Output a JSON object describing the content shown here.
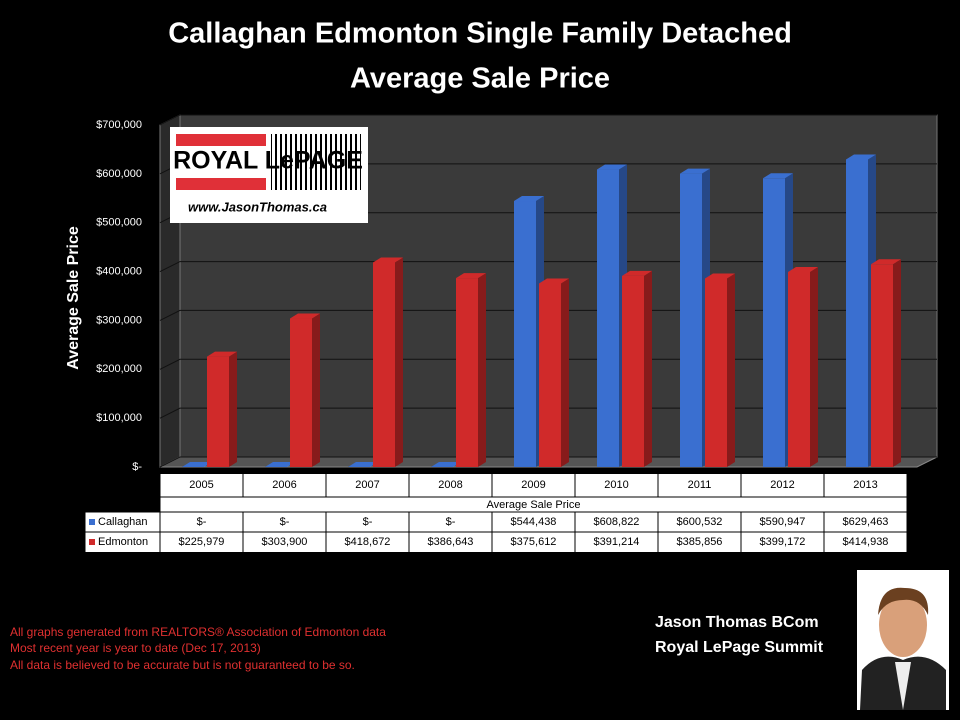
{
  "chart_data": {
    "type": "bar3d",
    "title": "Callaghan Edmonton Single Family Detached",
    "subtitle": "Average Sale Price",
    "y_axis_label": "Average Sale Price",
    "x_axis_label": "Average Sale Price",
    "categories": [
      "2005",
      "2006",
      "2007",
      "2008",
      "2009",
      "2010",
      "2011",
      "2012",
      "2013"
    ],
    "series": [
      {
        "name": "Callaghan",
        "color": "#3a6fd0",
        "values": [
          0,
          0,
          0,
          0,
          544438,
          608822,
          600532,
          590947,
          629463
        ],
        "value_labels": [
          "$-",
          "$-",
          "$-",
          "$-",
          "$544,438",
          "$608,822",
          "$600,532",
          "$590,947",
          "$629,463"
        ]
      },
      {
        "name": "Edmonton",
        "color": "#d02a2a",
        "values": [
          225979,
          303900,
          418672,
          386643,
          375612,
          391214,
          385856,
          399172,
          414938
        ],
        "value_labels": [
          "$225,979",
          "$303,900",
          "$418,672",
          "$386,643",
          "$375,612",
          "$391,214",
          "$385,856",
          "$399,172",
          "$414,938"
        ]
      }
    ],
    "ylim": [
      0,
      700000
    ],
    "yticks": [
      {
        "value": 0,
        "label": "$-"
      },
      {
        "value": 100000,
        "label": "$100,000"
      },
      {
        "value": 200000,
        "label": "$200,000"
      },
      {
        "value": 300000,
        "label": "$300,000"
      },
      {
        "value": 400000,
        "label": "$400,000"
      },
      {
        "value": 500000,
        "label": "$500,000"
      },
      {
        "value": 600000,
        "label": "$600,000"
      },
      {
        "value": 700000,
        "label": "$700,000"
      }
    ],
    "grid": true,
    "logo": {
      "brand": "ROYAL LePAGE",
      "url": "www.JasonThomas.ca"
    },
    "footnotes": [
      "All graphs generated from REALTORS® Association of Edmonton data",
      "Most recent year is year to date (Dec 17, 2013)",
      "All data is believed to be accurate but is not guaranteed to be so."
    ],
    "signature": [
      "Jason Thomas BCom",
      "Royal LePage Summit"
    ]
  }
}
